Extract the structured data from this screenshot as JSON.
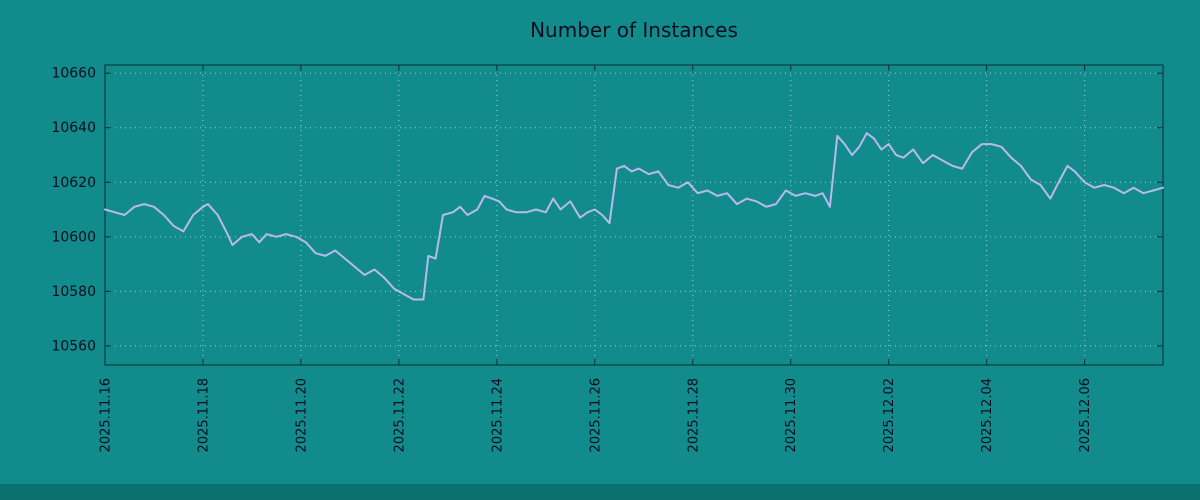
{
  "chart_data": {
    "type": "line",
    "title": "Number of Instances",
    "xlabel": "",
    "ylabel": "",
    "x_unit": "days since 2025.11.16",
    "xlim": [
      0,
      21.6
    ],
    "ylim": [
      10553,
      10663
    ],
    "grid": "dotted",
    "legend": "none",
    "xticks": [
      {
        "pos": 0,
        "label": "2025.11.16"
      },
      {
        "pos": 2,
        "label": "2025.11.18"
      },
      {
        "pos": 4,
        "label": "2025.11.20"
      },
      {
        "pos": 6,
        "label": "2025.11.22"
      },
      {
        "pos": 8,
        "label": "2025.11.24"
      },
      {
        "pos": 10,
        "label": "2025.11.26"
      },
      {
        "pos": 12,
        "label": "2025.11.28"
      },
      {
        "pos": 14,
        "label": "2025.11.30"
      },
      {
        "pos": 16,
        "label": "2025.12.02"
      },
      {
        "pos": 18,
        "label": "2025.12.04"
      },
      {
        "pos": 20,
        "label": "2025.12.06"
      }
    ],
    "yticks": [
      {
        "pos": 10560,
        "label": "10560"
      },
      {
        "pos": 10580,
        "label": "10580"
      },
      {
        "pos": 10600,
        "label": "10600"
      },
      {
        "pos": 10620,
        "label": "10620"
      },
      {
        "pos": 10640,
        "label": "10640"
      },
      {
        "pos": 10660,
        "label": "10660"
      }
    ],
    "colors": {
      "background": "#118b8b",
      "footer": "#0c7070",
      "line": "#b9b9ef",
      "grid": "#d2ecec",
      "border": "#0c2e2e",
      "text": "#0d0d1f"
    },
    "series": [
      {
        "name": "instances",
        "color": "#b9b9ef",
        "points": [
          [
            0.0,
            10610
          ],
          [
            0.2,
            10609
          ],
          [
            0.4,
            10608
          ],
          [
            0.6,
            10611
          ],
          [
            0.8,
            10612
          ],
          [
            1.0,
            10611
          ],
          [
            1.2,
            10608
          ],
          [
            1.4,
            10604
          ],
          [
            1.6,
            10602
          ],
          [
            1.8,
            10608
          ],
          [
            2.0,
            10611
          ],
          [
            2.1,
            10612
          ],
          [
            2.3,
            10608
          ],
          [
            2.5,
            10601
          ],
          [
            2.6,
            10597
          ],
          [
            2.8,
            10600
          ],
          [
            3.0,
            10601
          ],
          [
            3.15,
            10598
          ],
          [
            3.3,
            10601
          ],
          [
            3.5,
            10600
          ],
          [
            3.7,
            10601
          ],
          [
            3.9,
            10600
          ],
          [
            4.1,
            10598
          ],
          [
            4.3,
            10594
          ],
          [
            4.5,
            10593
          ],
          [
            4.7,
            10595
          ],
          [
            4.9,
            10592
          ],
          [
            5.1,
            10589
          ],
          [
            5.3,
            10586
          ],
          [
            5.5,
            10588
          ],
          [
            5.7,
            10585
          ],
          [
            5.9,
            10581
          ],
          [
            6.1,
            10579
          ],
          [
            6.3,
            10577
          ],
          [
            6.5,
            10577
          ],
          [
            6.6,
            10593
          ],
          [
            6.75,
            10592
          ],
          [
            6.9,
            10608
          ],
          [
            7.1,
            10609
          ],
          [
            7.25,
            10611
          ],
          [
            7.4,
            10608
          ],
          [
            7.6,
            10610
          ],
          [
            7.75,
            10615
          ],
          [
            7.9,
            10614
          ],
          [
            8.05,
            10613
          ],
          [
            8.2,
            10610
          ],
          [
            8.4,
            10609
          ],
          [
            8.6,
            10609
          ],
          [
            8.8,
            10610
          ],
          [
            9.0,
            10609
          ],
          [
            9.15,
            10614
          ],
          [
            9.3,
            10610
          ],
          [
            9.5,
            10613
          ],
          [
            9.7,
            10607
          ],
          [
            9.85,
            10609
          ],
          [
            10.0,
            10610
          ],
          [
            10.15,
            10608
          ],
          [
            10.3,
            10605
          ],
          [
            10.45,
            10625
          ],
          [
            10.6,
            10626
          ],
          [
            10.75,
            10624
          ],
          [
            10.9,
            10625
          ],
          [
            11.1,
            10623
          ],
          [
            11.3,
            10624
          ],
          [
            11.5,
            10619
          ],
          [
            11.7,
            10618
          ],
          [
            11.9,
            10620
          ],
          [
            12.1,
            10616
          ],
          [
            12.3,
            10617
          ],
          [
            12.5,
            10615
          ],
          [
            12.7,
            10616
          ],
          [
            12.9,
            10612
          ],
          [
            13.1,
            10614
          ],
          [
            13.3,
            10613
          ],
          [
            13.5,
            10611
          ],
          [
            13.7,
            10612
          ],
          [
            13.9,
            10617
          ],
          [
            14.1,
            10615
          ],
          [
            14.3,
            10616
          ],
          [
            14.5,
            10615
          ],
          [
            14.65,
            10616
          ],
          [
            14.8,
            10611
          ],
          [
            14.95,
            10637
          ],
          [
            15.1,
            10634
          ],
          [
            15.25,
            10630
          ],
          [
            15.4,
            10633
          ],
          [
            15.55,
            10638
          ],
          [
            15.7,
            10636
          ],
          [
            15.85,
            10632
          ],
          [
            16.0,
            10634
          ],
          [
            16.15,
            10630
          ],
          [
            16.3,
            10629
          ],
          [
            16.5,
            10632
          ],
          [
            16.7,
            10627
          ],
          [
            16.9,
            10630
          ],
          [
            17.1,
            10628
          ],
          [
            17.3,
            10626
          ],
          [
            17.5,
            10625
          ],
          [
            17.7,
            10631
          ],
          [
            17.9,
            10634
          ],
          [
            18.1,
            10634
          ],
          [
            18.3,
            10633
          ],
          [
            18.5,
            10629
          ],
          [
            18.7,
            10626
          ],
          [
            18.9,
            10621
          ],
          [
            19.1,
            10619
          ],
          [
            19.3,
            10614
          ],
          [
            19.5,
            10621
          ],
          [
            19.65,
            10626
          ],
          [
            19.8,
            10624
          ],
          [
            20.0,
            10620
          ],
          [
            20.2,
            10618
          ],
          [
            20.4,
            10619
          ],
          [
            20.6,
            10618
          ],
          [
            20.8,
            10616
          ],
          [
            21.0,
            10618
          ],
          [
            21.2,
            10616
          ],
          [
            21.4,
            10617
          ],
          [
            21.6,
            10618
          ]
        ]
      }
    ]
  }
}
